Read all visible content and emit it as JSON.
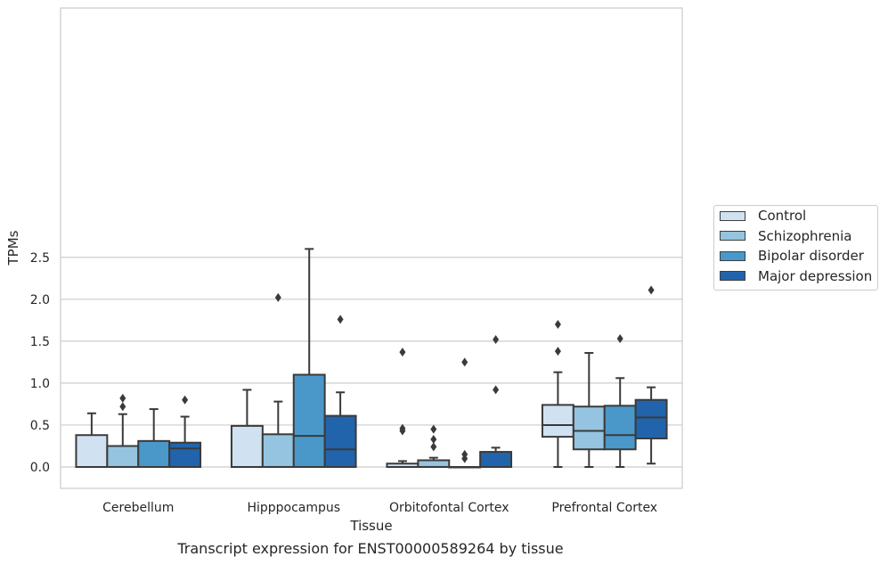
{
  "caption": "Transcript expression for ENST00000589264 by tissue",
  "chart_data": {
    "type": "box",
    "xlabel": "Tissue",
    "ylabel": "TPMs",
    "ylim": [
      -0.13,
      2.75
    ],
    "yticks": [
      "0.0",
      "0.5",
      "1.0",
      "1.5",
      "2.0",
      "2.5"
    ],
    "grid": "horizontal",
    "legend_position": "right",
    "categories": [
      "Cerebellum",
      "Hipppocampus",
      "Orbitofontal Cortex",
      "Prefrontal Cortex"
    ],
    "series": [
      {
        "name": "Control",
        "color": "#d0e1f2",
        "boxes": [
          {
            "min": 0.0,
            "q1": 0.0,
            "median": 0.0,
            "q3": 0.38,
            "max": 0.64,
            "outliers": []
          },
          {
            "min": 0.0,
            "q1": 0.0,
            "median": 0.0,
            "q3": 0.49,
            "max": 0.92,
            "outliers": []
          },
          {
            "min": 0.0,
            "q1": 0.0,
            "median": 0.0,
            "q3": 0.04,
            "max": 0.07,
            "outliers": [
              0.43,
              0.46,
              1.37
            ]
          },
          {
            "min": 0.0,
            "q1": 0.36,
            "median": 0.5,
            "q3": 0.74,
            "max": 1.13,
            "outliers": [
              1.38,
              1.7
            ]
          }
        ]
      },
      {
        "name": "Schizophrenia",
        "color": "#94c4df",
        "boxes": [
          {
            "min": 0.0,
            "q1": 0.0,
            "median": 0.0,
            "q3": 0.25,
            "max": 0.63,
            "outliers": [
              0.72,
              0.82
            ]
          },
          {
            "min": 0.0,
            "q1": 0.0,
            "median": 0.0,
            "q3": 0.39,
            "max": 0.78,
            "outliers": [
              2.02
            ]
          },
          {
            "min": 0.0,
            "q1": 0.0,
            "median": 0.0,
            "q3": 0.08,
            "max": 0.11,
            "outliers": [
              0.24,
              0.33,
              0.45
            ]
          },
          {
            "min": 0.0,
            "q1": 0.21,
            "median": 0.43,
            "q3": 0.72,
            "max": 1.36,
            "outliers": []
          }
        ]
      },
      {
        "name": "Bipolar disorder",
        "color": "#4a98c9",
        "boxes": [
          {
            "min": 0.0,
            "q1": 0.0,
            "median": 0.0,
            "q3": 0.31,
            "max": 0.69,
            "outliers": []
          },
          {
            "min": 0.0,
            "q1": 0.0,
            "median": 0.37,
            "q3": 1.1,
            "max": 2.6,
            "outliers": []
          },
          {
            "min": 0.0,
            "q1": 0.0,
            "median": 0.0,
            "q3": 0.0,
            "max": 0.0,
            "outliers": [
              0.1,
              0.15,
              1.25
            ]
          },
          {
            "min": 0.0,
            "q1": 0.21,
            "median": 0.38,
            "q3": 0.73,
            "max": 1.06,
            "outliers": [
              1.53
            ]
          }
        ]
      },
      {
        "name": "Major depression",
        "color": "#2164ab",
        "boxes": [
          {
            "min": 0.0,
            "q1": 0.0,
            "median": 0.22,
            "q3": 0.29,
            "max": 0.6,
            "outliers": [
              0.8
            ]
          },
          {
            "min": 0.0,
            "q1": 0.0,
            "median": 0.21,
            "q3": 0.61,
            "max": 0.89,
            "outliers": [
              1.76
            ]
          },
          {
            "min": 0.0,
            "q1": 0.0,
            "median": 0.0,
            "q3": 0.18,
            "max": 0.23,
            "outliers": [
              0.92,
              1.52
            ]
          },
          {
            "min": 0.04,
            "q1": 0.34,
            "median": 0.59,
            "q3": 0.8,
            "max": 0.95,
            "outliers": [
              2.11
            ]
          }
        ]
      }
    ]
  }
}
